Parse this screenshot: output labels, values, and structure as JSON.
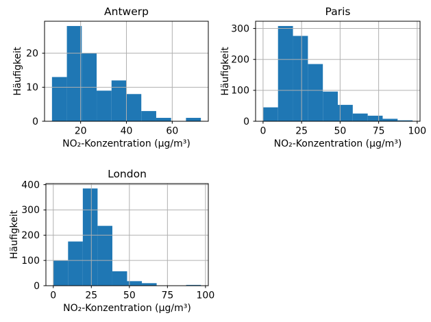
{
  "figure": {
    "background": "#ffffff",
    "bar_color": "#1f77b4",
    "grid_color": "#b0b0b0",
    "axis_color": "#000000",
    "text_color": "#000000"
  },
  "chart_data": [
    {
      "type": "bar",
      "subtype": "histogram",
      "title": "Antwerp",
      "xlabel": "NO₂-Konzentration (μg/m³)",
      "ylabel": "Häufigkeit",
      "bin_start": 7.5,
      "bin_width": 6.5,
      "counts": [
        13,
        28,
        20,
        9,
        12,
        8,
        3,
        1,
        0,
        1
      ],
      "x_ticks": [
        20,
        40,
        60
      ],
      "y_ticks": [
        0,
        10,
        20
      ],
      "xlim": [
        4.25,
        75.75
      ],
      "ylim": [
        0,
        29.4
      ],
      "grid": true,
      "legend": "none"
    },
    {
      "type": "bar",
      "subtype": "histogram",
      "title": "Paris",
      "xlabel": "NO₂-Konzentration (μg/m³)",
      "ylabel": "Häufigkeit",
      "bin_start": 0,
      "bin_width": 9.7,
      "counts": [
        45,
        308,
        276,
        185,
        96,
        53,
        25,
        18,
        8,
        3
      ],
      "x_ticks": [
        0,
        25,
        50,
        75,
        100
      ],
      "y_ticks": [
        0,
        100,
        200,
        300
      ],
      "xlim": [
        -4.85,
        101.85
      ],
      "ylim": [
        0,
        323.4
      ],
      "grid": true,
      "legend": "none"
    },
    {
      "type": "bar",
      "subtype": "histogram",
      "title": "London",
      "xlabel": "NO₂-Konzentration (μg/m³)",
      "ylabel": "Häufigkeit",
      "bin_start": 0,
      "bin_width": 9.7,
      "counts": [
        100,
        175,
        385,
        237,
        57,
        18,
        10,
        0,
        0,
        3
      ],
      "x_ticks": [
        0,
        25,
        50,
        75,
        100
      ],
      "y_ticks": [
        0,
        100,
        200,
        300,
        400
      ],
      "xlim": [
        -4.85,
        101.85
      ],
      "ylim": [
        0,
        404.25
      ],
      "grid": true,
      "legend": "none"
    }
  ]
}
